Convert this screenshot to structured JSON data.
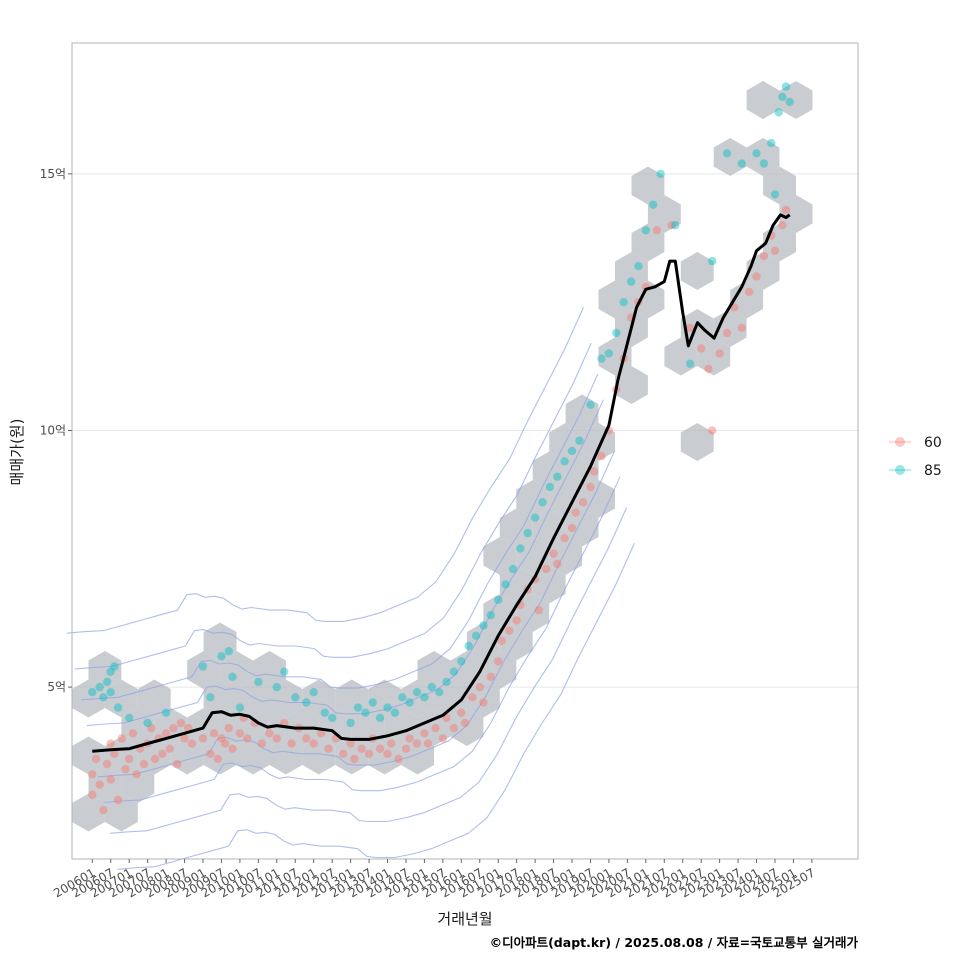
{
  "chart_data": {
    "type": "scatter",
    "title": "",
    "xlabel": "거래년월",
    "ylabel": "매매가(원)",
    "caption": "©디아파트(dapt.kr) / 2025.08.08 / 자료=국토교통부 실거래가",
    "x_ticks": [
      "200601",
      "200607",
      "200701",
      "200707",
      "200801",
      "200807",
      "200901",
      "200907",
      "201001",
      "201007",
      "201101",
      "201107",
      "201201",
      "201207",
      "201301",
      "201307",
      "201401",
      "201407",
      "201501",
      "201507",
      "201601",
      "201607",
      "201701",
      "201707",
      "201801",
      "201807",
      "201901",
      "201907",
      "202001",
      "202007",
      "202101",
      "202107",
      "202201",
      "202207",
      "202301",
      "202307",
      "202401",
      "202407",
      "202501",
      "202507"
    ],
    "xlim": [
      2005.45,
      2026.75
    ],
    "y_ticks": [
      {
        "value": 5,
        "label": "5억"
      },
      {
        "value": 10,
        "label": "10억"
      },
      {
        "value": 15,
        "label": "15억"
      }
    ],
    "ylim": [
      1.65,
      17.55
    ],
    "grid": "horizontal major",
    "legend_position": "right",
    "legend": [
      {
        "name": "60",
        "color": "#F8766D"
      },
      {
        "name": "85",
        "color": "#00BFC4"
      }
    ],
    "trend_line": {
      "color": "#000000",
      "points": [
        [
          2006.0,
          3.75
        ],
        [
          2006.5,
          3.78
        ],
        [
          2007.0,
          3.8
        ],
        [
          2007.5,
          3.9
        ],
        [
          2008.0,
          4.0
        ],
        [
          2008.5,
          4.1
        ],
        [
          2009.0,
          4.2
        ],
        [
          2009.25,
          4.5
        ],
        [
          2009.5,
          4.52
        ],
        [
          2009.75,
          4.45
        ],
        [
          2010.0,
          4.47
        ],
        [
          2010.25,
          4.43
        ],
        [
          2010.5,
          4.3
        ],
        [
          2010.75,
          4.22
        ],
        [
          2011.0,
          4.25
        ],
        [
          2011.5,
          4.2
        ],
        [
          2012.0,
          4.2
        ],
        [
          2012.5,
          4.15
        ],
        [
          2012.75,
          4.0
        ],
        [
          2013.0,
          3.98
        ],
        [
          2013.5,
          3.98
        ],
        [
          2014.0,
          4.05
        ],
        [
          2014.5,
          4.15
        ],
        [
          2015.0,
          4.3
        ],
        [
          2015.5,
          4.45
        ],
        [
          2016.0,
          4.75
        ],
        [
          2016.5,
          5.3
        ],
        [
          2017.0,
          6.0
        ],
        [
          2017.5,
          6.6
        ],
        [
          2018.0,
          7.15
        ],
        [
          2018.5,
          7.9
        ],
        [
          2019.0,
          8.6
        ],
        [
          2019.5,
          9.3
        ],
        [
          2020.0,
          10.1
        ],
        [
          2020.25,
          11.0
        ],
        [
          2020.5,
          11.7
        ],
        [
          2020.75,
          12.4
        ],
        [
          2021.0,
          12.75
        ],
        [
          2021.25,
          12.8
        ],
        [
          2021.5,
          12.9
        ],
        [
          2021.65,
          13.3
        ],
        [
          2021.8,
          13.3
        ],
        [
          2022.0,
          12.3
        ],
        [
          2022.15,
          11.65
        ],
        [
          2022.4,
          12.1
        ],
        [
          2022.6,
          11.95
        ],
        [
          2022.85,
          11.8
        ],
        [
          2023.1,
          12.2
        ],
        [
          2023.35,
          12.5
        ],
        [
          2023.6,
          12.8
        ],
        [
          2023.85,
          13.2
        ],
        [
          2024.0,
          13.5
        ],
        [
          2024.25,
          13.65
        ],
        [
          2024.45,
          14.0
        ],
        [
          2024.65,
          14.2
        ],
        [
          2024.8,
          14.15
        ],
        [
          2024.9,
          14.2
        ]
      ]
    },
    "series": [
      {
        "name": "60",
        "color": "#F8766D",
        "points": [
          [
            2006.0,
            3.3
          ],
          [
            2006.0,
            2.9
          ],
          [
            2006.1,
            3.6
          ],
          [
            2006.2,
            3.1
          ],
          [
            2006.3,
            2.6
          ],
          [
            2006.4,
            3.5
          ],
          [
            2006.5,
            3.9
          ],
          [
            2006.5,
            3.2
          ],
          [
            2006.6,
            3.7
          ],
          [
            2006.7,
            2.8
          ],
          [
            2006.8,
            4.0
          ],
          [
            2006.9,
            3.4
          ],
          [
            2007.0,
            3.6
          ],
          [
            2007.1,
            4.1
          ],
          [
            2007.2,
            3.3
          ],
          [
            2007.3,
            3.8
          ],
          [
            2007.4,
            3.5
          ],
          [
            2007.5,
            3.9
          ],
          [
            2007.6,
            4.2
          ],
          [
            2007.7,
            3.6
          ],
          [
            2007.8,
            4.0
          ],
          [
            2007.9,
            3.7
          ],
          [
            2008.0,
            4.1
          ],
          [
            2008.1,
            3.8
          ],
          [
            2008.2,
            4.2
          ],
          [
            2008.3,
            3.5
          ],
          [
            2008.4,
            4.3
          ],
          [
            2008.5,
            4.0
          ],
          [
            2008.6,
            4.2
          ],
          [
            2008.7,
            3.9
          ],
          [
            2009.0,
            4.0
          ],
          [
            2009.2,
            3.7
          ],
          [
            2009.3,
            4.1
          ],
          [
            2009.4,
            3.6
          ],
          [
            2009.5,
            4.0
          ],
          [
            2009.6,
            3.9
          ],
          [
            2009.7,
            4.2
          ],
          [
            2009.8,
            3.8
          ],
          [
            2010.0,
            4.1
          ],
          [
            2010.1,
            4.4
          ],
          [
            2010.2,
            4.0
          ],
          [
            2010.4,
            4.3
          ],
          [
            2010.6,
            3.9
          ],
          [
            2010.8,
            4.1
          ],
          [
            2011.0,
            4.0
          ],
          [
            2011.2,
            4.3
          ],
          [
            2011.4,
            3.9
          ],
          [
            2011.6,
            4.2
          ],
          [
            2011.8,
            4.0
          ],
          [
            2012.0,
            3.9
          ],
          [
            2012.2,
            4.1
          ],
          [
            2012.4,
            3.8
          ],
          [
            2012.6,
            4.0
          ],
          [
            2012.8,
            3.7
          ],
          [
            2013.0,
            3.9
          ],
          [
            2013.1,
            3.6
          ],
          [
            2013.3,
            3.8
          ],
          [
            2013.5,
            3.7
          ],
          [
            2013.6,
            4.0
          ],
          [
            2013.8,
            3.8
          ],
          [
            2014.0,
            3.7
          ],
          [
            2014.1,
            3.9
          ],
          [
            2014.3,
            3.6
          ],
          [
            2014.5,
            3.8
          ],
          [
            2014.6,
            4.0
          ],
          [
            2014.8,
            3.9
          ],
          [
            2015.0,
            4.1
          ],
          [
            2015.1,
            3.9
          ],
          [
            2015.3,
            4.2
          ],
          [
            2015.5,
            4.0
          ],
          [
            2015.6,
            4.4
          ],
          [
            2015.8,
            4.2
          ],
          [
            2016.0,
            4.5
          ],
          [
            2016.1,
            4.3
          ],
          [
            2016.3,
            4.8
          ],
          [
            2016.5,
            5.0
          ],
          [
            2016.6,
            4.7
          ],
          [
            2016.8,
            5.2
          ],
          [
            2017.0,
            5.5
          ],
          [
            2017.1,
            5.9
          ],
          [
            2017.3,
            6.1
          ],
          [
            2017.5,
            6.3
          ],
          [
            2017.6,
            6.6
          ],
          [
            2017.8,
            6.9
          ],
          [
            2018.0,
            7.1
          ],
          [
            2018.1,
            6.5
          ],
          [
            2018.3,
            7.3
          ],
          [
            2018.5,
            7.6
          ],
          [
            2018.6,
            7.4
          ],
          [
            2018.8,
            7.9
          ],
          [
            2019.0,
            8.1
          ],
          [
            2019.1,
            8.4
          ],
          [
            2019.3,
            8.6
          ],
          [
            2019.5,
            8.9
          ],
          [
            2019.6,
            9.2
          ],
          [
            2019.8,
            9.5
          ],
          [
            2020.0,
            10.0
          ],
          [
            2020.2,
            10.8
          ],
          [
            2020.4,
            11.4
          ],
          [
            2020.6,
            12.2
          ],
          [
            2020.8,
            12.5
          ],
          [
            2021.0,
            12.8
          ],
          [
            2021.3,
            13.9
          ],
          [
            2021.7,
            14.0
          ],
          [
            2022.2,
            12.0
          ],
          [
            2022.5,
            11.6
          ],
          [
            2022.7,
            11.2
          ],
          [
            2022.8,
            10.0
          ],
          [
            2023.0,
            11.5
          ],
          [
            2023.2,
            11.9
          ],
          [
            2023.4,
            12.4
          ],
          [
            2023.6,
            12.0
          ],
          [
            2023.8,
            12.7
          ],
          [
            2024.0,
            13.0
          ],
          [
            2024.2,
            13.4
          ],
          [
            2024.4,
            13.8
          ],
          [
            2024.5,
            13.5
          ],
          [
            2024.7,
            14.0
          ],
          [
            2024.8,
            14.3
          ]
        ]
      },
      {
        "name": "85",
        "color": "#00BFC4",
        "points": [
          [
            2006.0,
            4.9
          ],
          [
            2006.2,
            5.0
          ],
          [
            2006.3,
            4.8
          ],
          [
            2006.5,
            5.3
          ],
          [
            2006.6,
            5.4
          ],
          [
            2006.5,
            4.9
          ],
          [
            2006.4,
            5.1
          ],
          [
            2006.7,
            4.6
          ],
          [
            2007.0,
            4.4
          ],
          [
            2007.5,
            4.3
          ],
          [
            2008.0,
            4.5
          ],
          [
            2009.0,
            5.4
          ],
          [
            2009.2,
            4.8
          ],
          [
            2009.5,
            5.6
          ],
          [
            2009.7,
            5.7
          ],
          [
            2009.8,
            5.2
          ],
          [
            2010.0,
            4.6
          ],
          [
            2010.5,
            5.1
          ],
          [
            2011.0,
            5.0
          ],
          [
            2011.2,
            5.3
          ],
          [
            2011.5,
            4.8
          ],
          [
            2011.8,
            4.7
          ],
          [
            2012.0,
            4.9
          ],
          [
            2012.3,
            4.5
          ],
          [
            2012.5,
            4.4
          ],
          [
            2013.0,
            4.3
          ],
          [
            2013.2,
            4.6
          ],
          [
            2013.4,
            4.5
          ],
          [
            2013.6,
            4.7
          ],
          [
            2013.8,
            4.4
          ],
          [
            2014.0,
            4.6
          ],
          [
            2014.2,
            4.5
          ],
          [
            2014.4,
            4.8
          ],
          [
            2014.6,
            4.7
          ],
          [
            2014.8,
            4.9
          ],
          [
            2015.0,
            4.8
          ],
          [
            2015.2,
            5.0
          ],
          [
            2015.4,
            4.9
          ],
          [
            2015.6,
            5.1
          ],
          [
            2015.8,
            5.3
          ],
          [
            2016.0,
            5.5
          ],
          [
            2016.2,
            5.8
          ],
          [
            2016.4,
            6.0
          ],
          [
            2016.6,
            6.2
          ],
          [
            2016.8,
            6.4
          ],
          [
            2017.0,
            6.7
          ],
          [
            2017.2,
            7.0
          ],
          [
            2017.4,
            7.3
          ],
          [
            2017.6,
            7.7
          ],
          [
            2017.8,
            8.0
          ],
          [
            2018.0,
            8.3
          ],
          [
            2018.2,
            8.6
          ],
          [
            2018.4,
            8.9
          ],
          [
            2018.6,
            9.1
          ],
          [
            2018.8,
            9.4
          ],
          [
            2019.0,
            9.6
          ],
          [
            2019.2,
            9.8
          ],
          [
            2019.5,
            10.5
          ],
          [
            2019.8,
            11.4
          ],
          [
            2020.0,
            11.5
          ],
          [
            2020.2,
            11.9
          ],
          [
            2020.4,
            12.5
          ],
          [
            2020.6,
            12.9
          ],
          [
            2020.8,
            13.2
          ],
          [
            2021.0,
            13.9
          ],
          [
            2021.2,
            14.4
          ],
          [
            2021.4,
            15.0
          ],
          [
            2021.8,
            14.0
          ],
          [
            2022.2,
            11.3
          ],
          [
            2022.8,
            13.3
          ],
          [
            2023.2,
            15.4
          ],
          [
            2023.6,
            15.2
          ],
          [
            2024.0,
            15.4
          ],
          [
            2024.2,
            15.2
          ],
          [
            2024.4,
            15.6
          ],
          [
            2024.5,
            14.6
          ],
          [
            2024.6,
            16.2
          ],
          [
            2024.7,
            16.5
          ],
          [
            2024.8,
            16.7
          ],
          [
            2024.9,
            16.4
          ]
        ]
      }
    ]
  }
}
